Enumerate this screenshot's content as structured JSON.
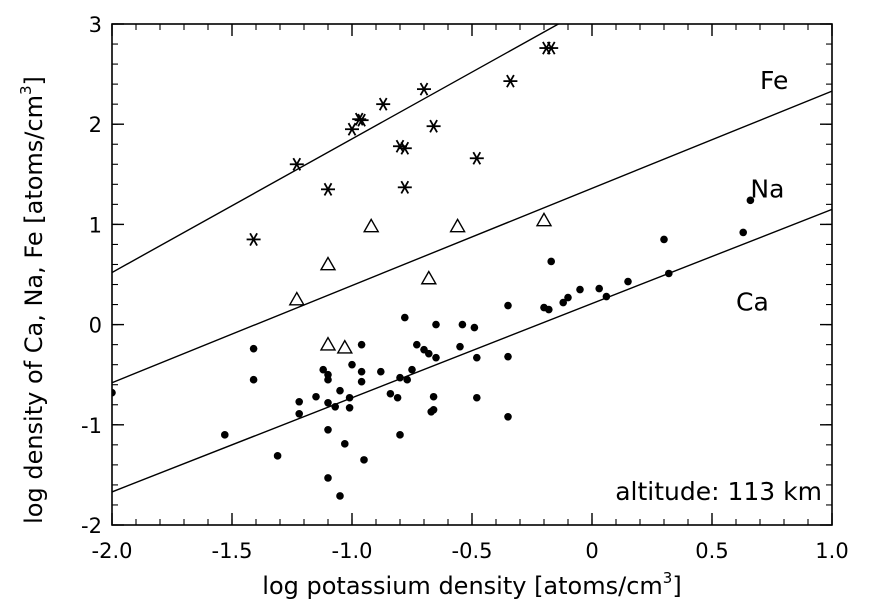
{
  "chart_data": {
    "type": "scatter",
    "xlabel": "log potassium density [atoms/cm",
    "xlabel_sup": "3",
    "xlabel_end": "]",
    "ylabel": "log density of Ca, Na, Fe [atoms/cm",
    "ylabel_sup": "3",
    "ylabel_end": "]",
    "xlim": [
      -2.0,
      1.0
    ],
    "ylim": [
      -2,
      3
    ],
    "x_ticks": [
      "-2.0",
      "-1.5",
      "-1.0",
      "-0.5",
      "0",
      "0.5",
      "1.0"
    ],
    "x_tick_values": [
      -2.0,
      -1.5,
      -1.0,
      -0.5,
      0,
      0.5,
      1.0
    ],
    "y_ticks": [
      "-2",
      "-1",
      "0",
      "1",
      "2",
      "3"
    ],
    "y_tick_values": [
      -2,
      -1,
      0,
      1,
      2,
      3
    ],
    "annotation": "altitude: 113 km",
    "grid": false,
    "series": [
      {
        "name": "Fe",
        "marker": "asterisk",
        "points": [
          [
            -1.41,
            0.85
          ],
          [
            -1.23,
            1.6
          ],
          [
            -1.1,
            1.35
          ],
          [
            -1.0,
            1.95
          ],
          [
            -0.97,
            2.05
          ],
          [
            -0.96,
            2.04
          ],
          [
            -0.87,
            2.2
          ],
          [
            -0.8,
            1.78
          ],
          [
            -0.78,
            1.76
          ],
          [
            -0.78,
            1.37
          ],
          [
            -0.7,
            2.35
          ],
          [
            -0.66,
            1.98
          ],
          [
            -0.48,
            1.66
          ],
          [
            -0.34,
            2.43
          ],
          [
            -0.19,
            2.76
          ],
          [
            -0.17,
            2.76
          ]
        ],
        "fit": [
          [
            -2.0,
            0.52
          ],
          [
            -0.14,
            3.0
          ]
        ]
      },
      {
        "name": "Na",
        "marker": "triangle",
        "points": [
          [
            -1.23,
            0.25
          ],
          [
            -1.1,
            0.6
          ],
          [
            -1.1,
            -0.2
          ],
          [
            -1.03,
            -0.23
          ],
          [
            -0.92,
            0.98
          ],
          [
            -0.68,
            0.46
          ],
          [
            -0.56,
            0.98
          ],
          [
            -0.2,
            1.04
          ]
        ],
        "fit": [
          [
            -2.0,
            -0.58
          ],
          [
            1.0,
            2.33
          ]
        ]
      },
      {
        "name": "Ca",
        "marker": "dot",
        "points": [
          [
            -2.0,
            -0.68
          ],
          [
            -1.53,
            -1.1
          ],
          [
            -1.41,
            -0.24
          ],
          [
            -1.41,
            -0.55
          ],
          [
            -1.31,
            -1.31
          ],
          [
            -1.22,
            -0.77
          ],
          [
            -1.22,
            -0.89
          ],
          [
            -1.15,
            -0.72
          ],
          [
            -1.12,
            -0.45
          ],
          [
            -1.1,
            -0.5
          ],
          [
            -1.1,
            -0.55
          ],
          [
            -1.1,
            -0.78
          ],
          [
            -1.1,
            -1.05
          ],
          [
            -1.1,
            -1.53
          ],
          [
            -1.07,
            -0.82
          ],
          [
            -1.05,
            -0.66
          ],
          [
            -1.05,
            -1.71
          ],
          [
            -1.03,
            -1.19
          ],
          [
            -1.01,
            -0.73
          ],
          [
            -1.01,
            -0.83
          ],
          [
            -1.0,
            -0.4
          ],
          [
            -0.96,
            -0.47
          ],
          [
            -0.96,
            -0.57
          ],
          [
            -0.96,
            -0.2
          ],
          [
            -0.95,
            -1.35
          ],
          [
            -0.88,
            -0.47
          ],
          [
            -0.84,
            -0.69
          ],
          [
            -0.81,
            -0.73
          ],
          [
            -0.8,
            -0.53
          ],
          [
            -0.8,
            -1.1
          ],
          [
            -0.78,
            0.07
          ],
          [
            -0.77,
            -0.55
          ],
          [
            -0.75,
            -0.45
          ],
          [
            -0.73,
            -0.2
          ],
          [
            -0.7,
            -0.25
          ],
          [
            -0.68,
            -0.29
          ],
          [
            -0.67,
            -0.87
          ],
          [
            -0.66,
            -0.72
          ],
          [
            -0.66,
            -0.85
          ],
          [
            -0.65,
            0.0
          ],
          [
            -0.65,
            -0.33
          ],
          [
            -0.55,
            -0.22
          ],
          [
            -0.54,
            -0.0
          ],
          [
            -0.49,
            -0.03
          ],
          [
            -0.48,
            -0.33
          ],
          [
            -0.48,
            -0.73
          ],
          [
            -0.35,
            0.19
          ],
          [
            -0.35,
            -0.32
          ],
          [
            -0.35,
            -0.92
          ],
          [
            -0.2,
            0.17
          ],
          [
            -0.18,
            0.15
          ],
          [
            -0.17,
            0.63
          ],
          [
            -0.12,
            0.22
          ],
          [
            -0.1,
            0.27
          ],
          [
            -0.05,
            0.35
          ],
          [
            0.03,
            0.36
          ],
          [
            0.06,
            0.28
          ],
          [
            0.15,
            0.43
          ],
          [
            0.3,
            0.85
          ],
          [
            0.32,
            0.51
          ],
          [
            0.63,
            0.92
          ],
          [
            0.66,
            1.24
          ]
        ],
        "fit": [
          [
            -2.0,
            -1.67
          ],
          [
            1.0,
            1.15
          ]
        ]
      }
    ],
    "series_labels": [
      {
        "text": "Fe",
        "x": 0.7,
        "y": 2.35
      },
      {
        "text": "Na",
        "x": 0.66,
        "y": 1.27
      },
      {
        "text": "Ca",
        "x": 0.6,
        "y": 0.14
      }
    ]
  }
}
